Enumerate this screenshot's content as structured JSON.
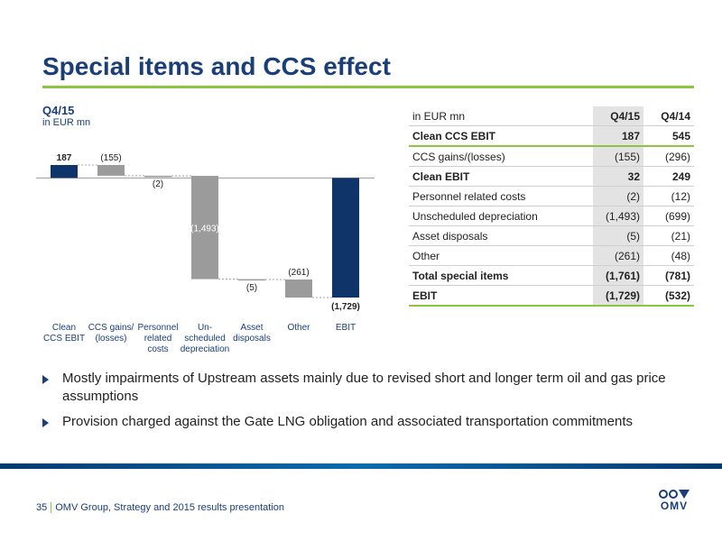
{
  "slide": {
    "title": "Special items and CCS effect",
    "period": "Q4/15",
    "unit": "in EUR mn"
  },
  "chart_data": {
    "type": "waterfall",
    "categories": [
      [
        "Clean",
        "CCS EBIT"
      ],
      [
        "CCS gains/",
        "(losses)"
      ],
      [
        "Personnel",
        "related",
        "costs"
      ],
      [
        "Un-",
        "scheduled",
        "depreciation"
      ],
      [
        "Asset",
        "disposals"
      ],
      [
        "Other"
      ],
      [
        "EBIT"
      ]
    ],
    "values": [
      187,
      -155,
      -2,
      -1493,
      -5,
      -261,
      -1729
    ],
    "kinds": [
      "total",
      "delta",
      "delta",
      "delta",
      "delta",
      "delta",
      "total"
    ],
    "labels": [
      "187",
      "(155)",
      "(2)",
      "(1,493)",
      "(5)",
      "(261)",
      "(1,729)"
    ],
    "colors": {
      "total": "#0f3469",
      "delta": "#9b9b9b"
    }
  },
  "table": {
    "header": [
      "in EUR mn",
      "Q4/15",
      "Q4/14"
    ],
    "rows": [
      {
        "label": "Clean CCS EBIT",
        "q415": "187",
        "q414": "545",
        "bold": true,
        "green": true
      },
      {
        "label": "CCS gains/(losses)",
        "q415": "(155)",
        "q414": "(296)",
        "bold": false
      },
      {
        "label": "Clean EBIT",
        "q415": "32",
        "q414": "249",
        "bold": true
      },
      {
        "label": "Personnel related costs",
        "q415": "(2)",
        "q414": "(12)",
        "bold": false
      },
      {
        "label": "Unscheduled depreciation",
        "q415": "(1,493)",
        "q414": "(699)",
        "bold": false
      },
      {
        "label": "Asset disposals",
        "q415": "(5)",
        "q414": "(21)",
        "bold": false
      },
      {
        "label": "Other",
        "q415": "(261)",
        "q414": "(48)",
        "bold": false
      },
      {
        "label": "Total special items",
        "q415": "(1,761)",
        "q414": "(781)",
        "bold": true
      },
      {
        "label": "EBIT",
        "q415": "(1,729)",
        "q414": "(532)",
        "bold": true,
        "last": true
      }
    ]
  },
  "bullets": [
    "Mostly impairments of Upstream assets mainly due to revised short and longer term oil and gas price assumptions",
    "Provision charged against the Gate LNG obligation and associated transportation commitments"
  ],
  "footer": {
    "page": "35",
    "text": "OMV Group, Strategy and 2015 results presentation",
    "logo": "OMV"
  }
}
